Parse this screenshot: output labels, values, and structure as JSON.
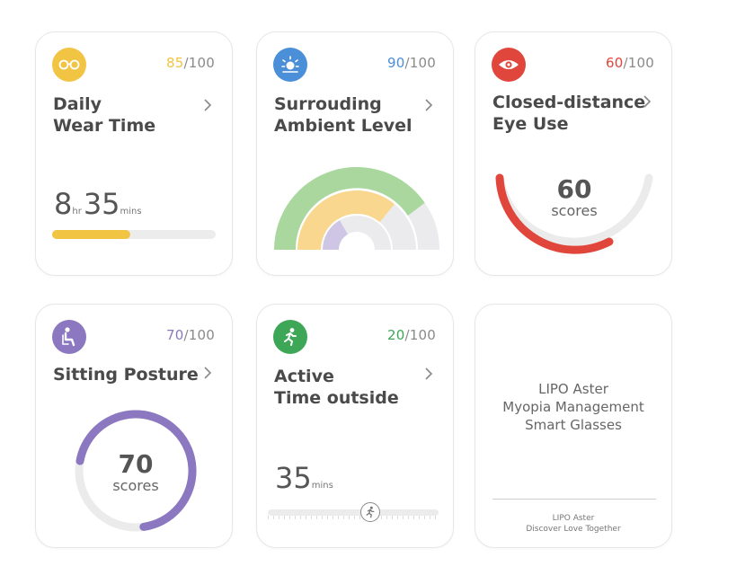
{
  "cards": {
    "wear": {
      "score": "85",
      "max": "/100",
      "title_line1": "Daily",
      "title_line2": "Wear Time",
      "hours": "8",
      "hours_unit": "hr",
      "minutes": "35",
      "minutes_unit": "mins",
      "progress": 0.48,
      "accent": "#F2C444"
    },
    "ambient": {
      "score": "90",
      "max": "/100",
      "title_line1": "Surrouding",
      "title_line2": "Ambient Level",
      "accent": "#4A8FD8"
    },
    "eye": {
      "score": "60",
      "max": "/100",
      "title_line1": "Closed-distance",
      "title_line2": "Eye Use",
      "value": "60",
      "value_label": "scores",
      "accent": "#E0463B"
    },
    "posture": {
      "score": "70",
      "max": "/100",
      "title_line1": "Sitting Posture",
      "value": "70",
      "value_label": "scores",
      "accent": "#8B78C0"
    },
    "outside": {
      "score": "20",
      "max": "/100",
      "title_line1": "Active",
      "title_line2": "Time outside",
      "minutes": "35",
      "minutes_unit": "mins",
      "slider_position": 0.6,
      "accent": "#3EA757"
    },
    "promo": {
      "line1": "LIPO Aster",
      "line2": "Myopia Management",
      "line3": "Smart Glasses",
      "footer1": "LIPO Aster",
      "footer2": "Discover Love Together"
    }
  }
}
